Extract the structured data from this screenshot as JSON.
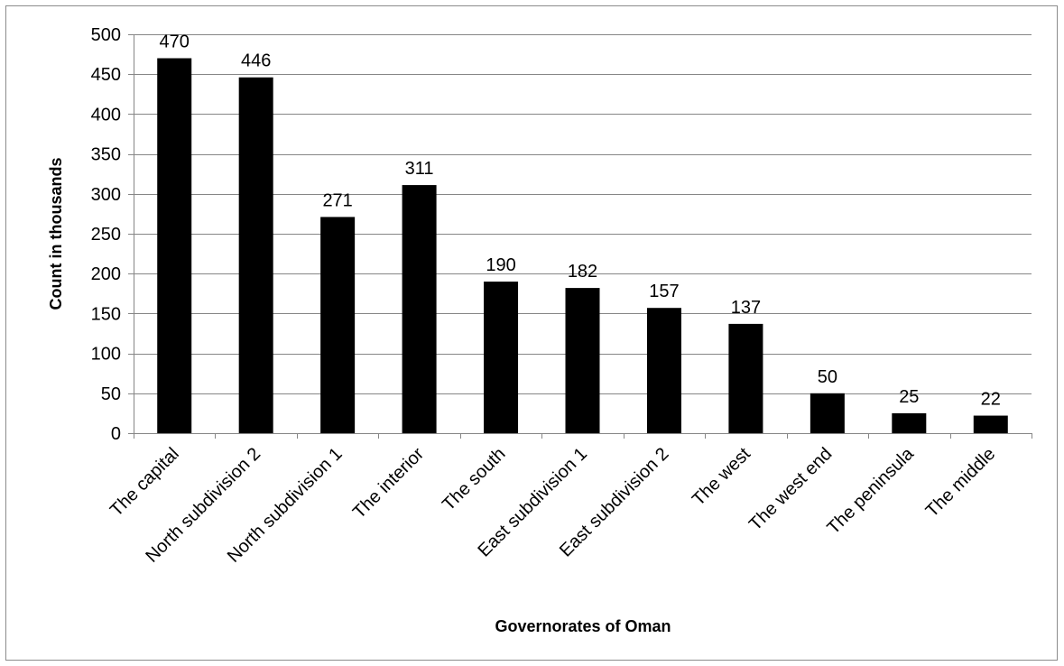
{
  "chart_data": {
    "type": "bar",
    "title": "",
    "xlabel": "Governorates of Oman",
    "ylabel": "Count in thousands",
    "categories": [
      "The capital",
      "North subdivision 2",
      "North subdivision 1",
      "The interior",
      "The south",
      "East subdivision 1",
      "East subdivision 2",
      "The west",
      "The west end",
      "The peninsula",
      "The middle"
    ],
    "values": [
      470,
      446,
      271,
      311,
      190,
      182,
      157,
      137,
      50,
      25,
      22
    ],
    "ylim": [
      0,
      500
    ],
    "yticks": [
      0,
      50,
      100,
      150,
      200,
      250,
      300,
      350,
      400,
      450,
      500
    ],
    "grid": true,
    "legend": "none",
    "data_labels": true,
    "bar_color": "#000000",
    "gridline_color": "#868686"
  }
}
